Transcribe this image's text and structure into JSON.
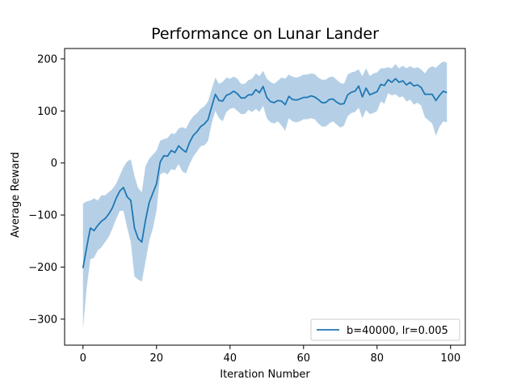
{
  "chart_data": {
    "type": "line",
    "title": "Performance on Lunar Lander",
    "xlabel": "Iteration Number",
    "ylabel": "Average Reward",
    "xlim": [
      -5,
      104
    ],
    "ylim": [
      -350,
      220
    ],
    "xticks": [
      0,
      20,
      40,
      60,
      80,
      100
    ],
    "yticks": [
      -300,
      -200,
      -100,
      0,
      100,
      200
    ],
    "xtick_labels": [
      "0",
      "20",
      "40",
      "60",
      "80",
      "100"
    ],
    "ytick_labels": [
      "−300",
      "−200",
      "−100",
      "0",
      "100",
      "200"
    ],
    "grid": false,
    "legend_position": "lower-right",
    "series_color": "#1f77b4",
    "band_color": "#b5d0e6",
    "series": [
      {
        "name": "b=40000, lr=0.005",
        "x": [
          0,
          1,
          2,
          3,
          4,
          5,
          6,
          7,
          8,
          9,
          10,
          11,
          12,
          13,
          14,
          15,
          16,
          17,
          18,
          19,
          20,
          21,
          22,
          23,
          24,
          25,
          26,
          27,
          28,
          29,
          30,
          31,
          32,
          33,
          34,
          35,
          36,
          37,
          38,
          39,
          40,
          41,
          42,
          43,
          44,
          45,
          46,
          47,
          48,
          49,
          50,
          51,
          52,
          53,
          54,
          55,
          56,
          57,
          58,
          59,
          60,
          61,
          62,
          63,
          64,
          65,
          66,
          67,
          68,
          69,
          70,
          71,
          72,
          73,
          74,
          75,
          76,
          77,
          78,
          79,
          80,
          81,
          82,
          83,
          84,
          85,
          86,
          87,
          88,
          89,
          90,
          91,
          92,
          93,
          94,
          95,
          96,
          97,
          98,
          99
        ],
        "mean": [
          -202,
          -162,
          -125,
          -130,
          -120,
          -112,
          -107,
          -98,
          -86,
          -68,
          -54,
          -47,
          -65,
          -72,
          -125,
          -145,
          -152,
          -110,
          -76,
          -58,
          -40,
          2,
          14,
          13,
          24,
          20,
          33,
          26,
          21,
          40,
          53,
          60,
          70,
          75,
          83,
          108,
          132,
          120,
          119,
          130,
          133,
          138,
          133,
          125,
          125,
          131,
          131,
          141,
          135,
          147,
          126,
          118,
          116,
          120,
          119,
          112,
          128,
          122,
          121,
          123,
          126,
          126,
          129,
          127,
          122,
          116,
          116,
          122,
          123,
          117,
          113,
          114,
          131,
          136,
          138,
          148,
          127,
          144,
          131,
          134,
          137,
          151,
          149,
          160,
          155,
          162,
          155,
          158,
          150,
          155,
          148,
          150,
          145,
          132,
          132,
          132,
          120,
          130,
          138,
          135
        ],
        "upper": [
          -78,
          -74,
          -72,
          -68,
          -72,
          -62,
          -62,
          -56,
          -50,
          -40,
          -24,
          -8,
          3,
          7,
          -25,
          -48,
          -56,
          -6,
          8,
          16,
          24,
          43,
          46,
          48,
          57,
          56,
          66,
          69,
          66,
          80,
          90,
          96,
          104,
          109,
          118,
          142,
          164,
          152,
          156,
          164,
          162,
          166,
          162,
          152,
          152,
          159,
          162,
          172,
          167,
          177,
          162,
          156,
          152,
          158,
          164,
          162,
          170,
          166,
          164,
          166,
          170,
          170,
          172,
          171,
          164,
          160,
          160,
          165,
          166,
          160,
          154,
          152,
          170,
          174,
          176,
          180,
          167,
          182,
          167,
          172,
          174,
          182,
          182,
          184,
          182,
          190,
          182,
          187,
          182,
          186,
          182,
          184,
          180,
          172,
          182,
          186,
          183,
          190,
          195,
          193
        ],
        "lower": [
          -318,
          -240,
          -185,
          -182,
          -168,
          -162,
          -152,
          -142,
          -126,
          -108,
          -92,
          -92,
          -124,
          -152,
          -218,
          -224,
          -228,
          -190,
          -150,
          -126,
          -92,
          -22,
          -18,
          -22,
          -12,
          -14,
          -2,
          -16,
          -20,
          -2,
          12,
          22,
          32,
          34,
          42,
          76,
          100,
          86,
          80,
          98,
          104,
          106,
          100,
          94,
          94,
          102,
          98,
          104,
          98,
          110,
          86,
          78,
          76,
          80,
          72,
          62,
          86,
          80,
          78,
          80,
          84,
          84,
          86,
          84,
          76,
          70,
          70,
          76,
          80,
          74,
          68,
          72,
          90,
          96,
          98,
          106,
          86,
          102,
          94,
          96,
          100,
          118,
          114,
          134,
          130,
          132,
          126,
          128,
          118,
          122,
          112,
          116,
          110,
          88,
          82,
          76,
          52,
          70,
          80,
          78
        ]
      }
    ]
  }
}
